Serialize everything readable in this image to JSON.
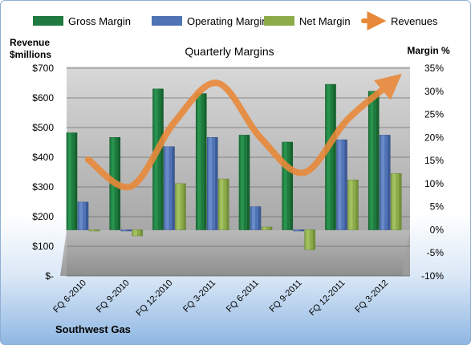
{
  "chart_data": {
    "type": "bar",
    "title": "Quarterly Margins",
    "company": "Southwest Gas",
    "left_axis": {
      "label_line1": "Revenue",
      "label_line2": "$millions",
      "range": [
        0,
        700
      ],
      "ticks": [
        "$-",
        "$100",
        "$200",
        "$300",
        "$400",
        "$500",
        "$600",
        "$700"
      ]
    },
    "right_axis": {
      "label": "Margin %",
      "range": [
        -10,
        35
      ],
      "ticks": [
        "-10%",
        "-5%",
        "0%",
        "5%",
        "10%",
        "15%",
        "20%",
        "25%",
        "30%",
        "35%"
      ]
    },
    "categories": [
      "FQ 6-2010",
      "FQ 9-2010",
      "FQ 12-2010",
      "FQ 3-2011",
      "FQ 6-2011",
      "FQ 9-2011",
      "FQ 12-2011",
      "FQ 3-2012"
    ],
    "series": [
      {
        "name": "Gross Margin",
        "axis": "right",
        "color": "#1e7a3e",
        "values": [
          21,
          20,
          30.5,
          29.5,
          20.5,
          19,
          31.5,
          30
        ]
      },
      {
        "name": "Operating Margin",
        "axis": "right",
        "color": "#4f73b5",
        "values": [
          6,
          0,
          18,
          20,
          5,
          0,
          19.5,
          20.5
        ]
      },
      {
        "name": "Net Margin",
        "axis": "right",
        "color": "#8cac4a",
        "values": [
          -0.1,
          -1.3,
          10,
          11,
          0.6,
          -4.3,
          10.8,
          12.2
        ]
      },
      {
        "name": "Revenues",
        "axis": "left",
        "color": "#e8893a",
        "values": [
          392,
          302,
          518,
          650,
          465,
          348,
          525,
          648
        ]
      }
    ],
    "legend_position": "top",
    "grid": true
  }
}
